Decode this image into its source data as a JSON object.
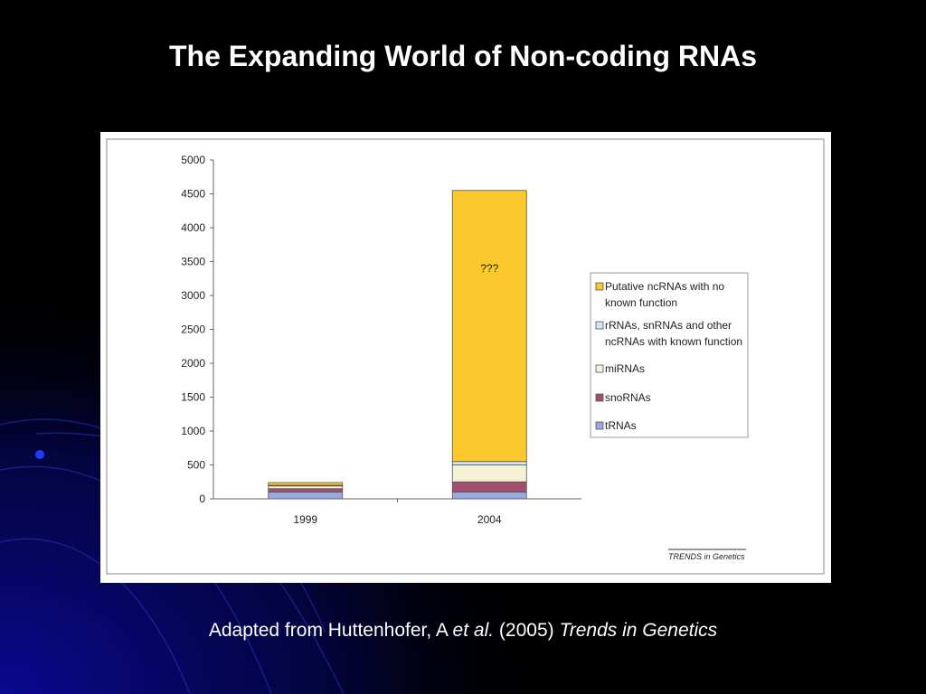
{
  "slide": {
    "title": "The Expanding World of Non-coding RNAs",
    "caption": {
      "prefix": "Adapted from Huttenhofer, A ",
      "etal": "et al.",
      "year": " (2005) ",
      "journal": "Trends in Genetics"
    }
  },
  "colors": {
    "background": "#000000",
    "glow": "#0a0a9a",
    "tRNAs": "#9aa8e0",
    "snoRNAs": "#a0506e",
    "miRNAs": "#f4f1d6",
    "known": "#cfe9f4",
    "putative": "#fbc92c"
  },
  "chart_data": {
    "type": "bar",
    "stacked": true,
    "categories": [
      "1999",
      "2004"
    ],
    "series": [
      {
        "name": "tRNAs",
        "color_key": "tRNAs",
        "values": [
          100,
          100
        ]
      },
      {
        "name": "snoRNAs",
        "color_key": "snoRNAs",
        "values": [
          50,
          150
        ]
      },
      {
        "name": "miRNAs",
        "color_key": "miRNAs",
        "values": [
          40,
          250
        ]
      },
      {
        "name": "rRNAs, snRNAs and other ncRNAs with known function",
        "lines": [
          "rRNAs, snRNAs and other",
          "ncRNAs with known function"
        ],
        "color_key": "known",
        "values": [
          10,
          50
        ]
      },
      {
        "name": "Putative ncRNAs with no known function",
        "lines": [
          "Putative ncRNAs with no",
          "known function"
        ],
        "color_key": "putative",
        "values": [
          40,
          4000
        ]
      }
    ],
    "legend_order": [
      4,
      3,
      2,
      1,
      0
    ],
    "yticks": [
      0,
      500,
      1000,
      1500,
      2000,
      2500,
      3000,
      3500,
      4000,
      4500,
      5000
    ],
    "ylim": [
      0,
      5000
    ],
    "annotation": {
      "text": "???",
      "category": "2004",
      "series": "Putative ncRNAs with no known function"
    },
    "legend_position": "right",
    "grid": false,
    "source": "TRENDS in Genetics"
  }
}
